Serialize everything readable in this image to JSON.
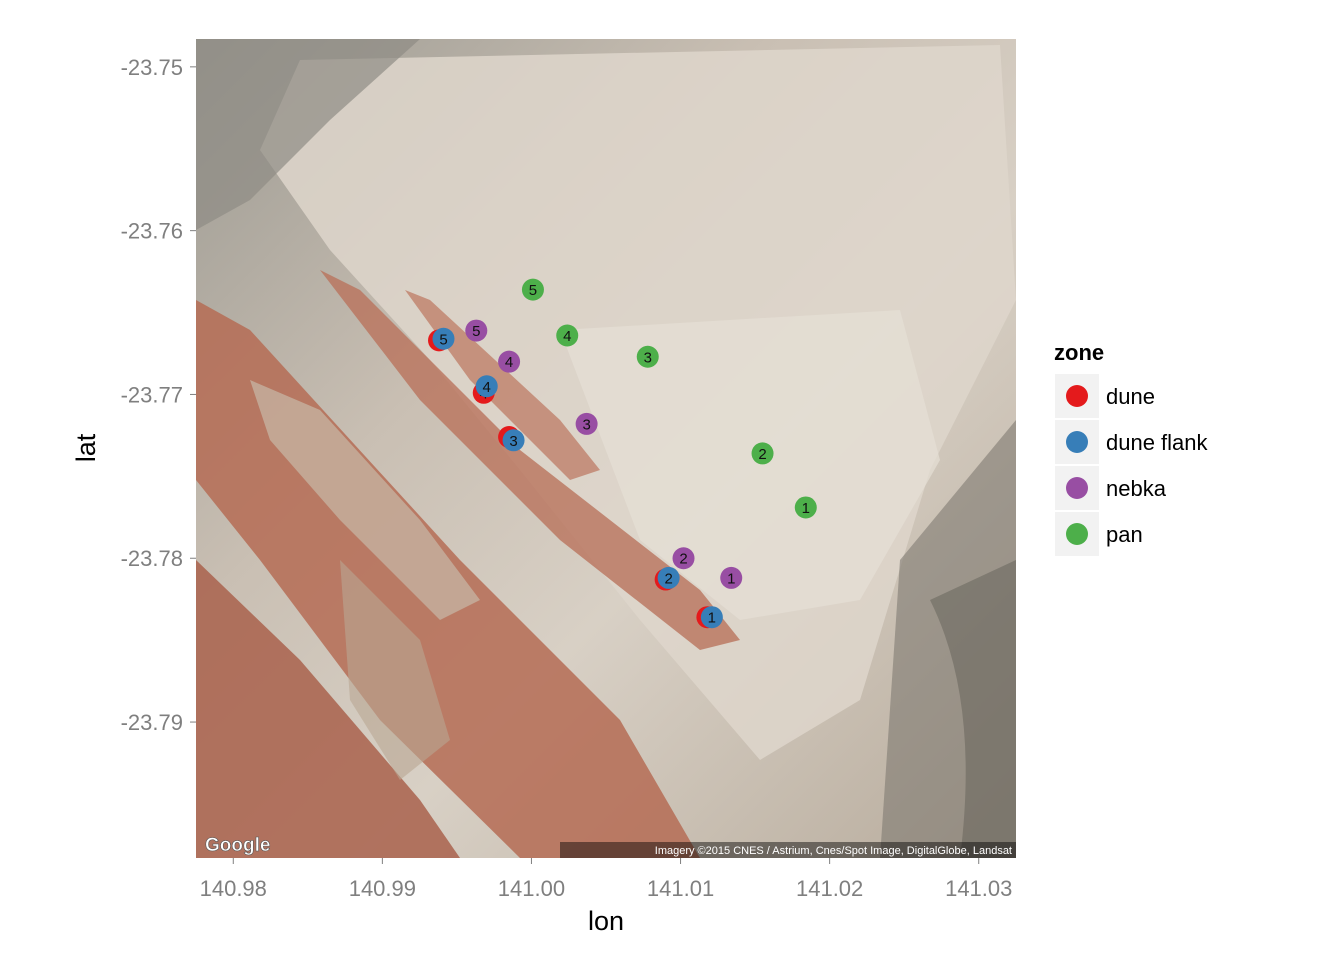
{
  "map": {
    "google_logo": "Google",
    "attribution": "Imagery ©2015 CNES / Astrium, Cnes/Spot Image, DigitalGlobe, Landsat"
  },
  "legend": {
    "title": "zone",
    "items": [
      {
        "label": "dune",
        "color": "#e41a1c"
      },
      {
        "label": "dune flank",
        "color": "#377eb8"
      },
      {
        "label": "nebka",
        "color": "#984ea3"
      },
      {
        "label": "pan",
        "color": "#4daf4a"
      }
    ]
  },
  "chart_data": {
    "type": "scatter",
    "xlabel": "lon",
    "ylabel": "lat",
    "xlim": [
      140.9775,
      141.0325
    ],
    "ylim": [
      -23.7983,
      -23.7483
    ],
    "x_ticks": [
      140.98,
      140.99,
      141.0,
      141.01,
      141.02,
      141.03
    ],
    "x_tick_labels": [
      "140.98",
      "140.99",
      "141.00",
      "141.01",
      "141.02",
      "141.03"
    ],
    "y_ticks": [
      -23.75,
      -23.76,
      -23.77,
      -23.78,
      -23.79
    ],
    "y_tick_labels": [
      "-23.75",
      "-23.76",
      "-23.77",
      "-23.78",
      "-23.79"
    ],
    "background": "satellite imagery",
    "series": [
      {
        "name": "dune",
        "color": "#e41a1c",
        "points": [
          {
            "lon": 141.0118,
            "lat": -23.7836,
            "label": "1"
          },
          {
            "lon": 141.009,
            "lat": -23.7813,
            "label": "2"
          },
          {
            "lon": 140.9985,
            "lat": -23.7726,
            "label": "3"
          },
          {
            "lon": 140.9968,
            "lat": -23.7699,
            "label": "4"
          },
          {
            "lon": 140.9938,
            "lat": -23.7667,
            "label": "5"
          }
        ]
      },
      {
        "name": "dune flank",
        "color": "#377eb8",
        "points": [
          {
            "lon": 141.0121,
            "lat": -23.7836,
            "label": "1"
          },
          {
            "lon": 141.0092,
            "lat": -23.7812,
            "label": "2"
          },
          {
            "lon": 140.9988,
            "lat": -23.7728,
            "label": "3"
          },
          {
            "lon": 140.997,
            "lat": -23.7695,
            "label": "4"
          },
          {
            "lon": 140.9941,
            "lat": -23.7666,
            "label": "5"
          }
        ]
      },
      {
        "name": "nebka",
        "color": "#984ea3",
        "points": [
          {
            "lon": 141.0134,
            "lat": -23.7812,
            "label": "1"
          },
          {
            "lon": 141.0102,
            "lat": -23.78,
            "label": "2"
          },
          {
            "lon": 141.0037,
            "lat": -23.7718,
            "label": "3"
          },
          {
            "lon": 140.9985,
            "lat": -23.768,
            "label": "4"
          },
          {
            "lon": 140.9963,
            "lat": -23.7661,
            "label": "5"
          }
        ]
      },
      {
        "name": "pan",
        "color": "#4daf4a",
        "points": [
          {
            "lon": 141.0184,
            "lat": -23.7769,
            "label": "1"
          },
          {
            "lon": 141.0155,
            "lat": -23.7736,
            "label": "2"
          },
          {
            "lon": 141.0078,
            "lat": -23.7677,
            "label": "3"
          },
          {
            "lon": 141.0024,
            "lat": -23.7664,
            "label": "4"
          },
          {
            "lon": 141.0001,
            "lat": -23.7636,
            "label": "5"
          }
        ]
      }
    ]
  }
}
